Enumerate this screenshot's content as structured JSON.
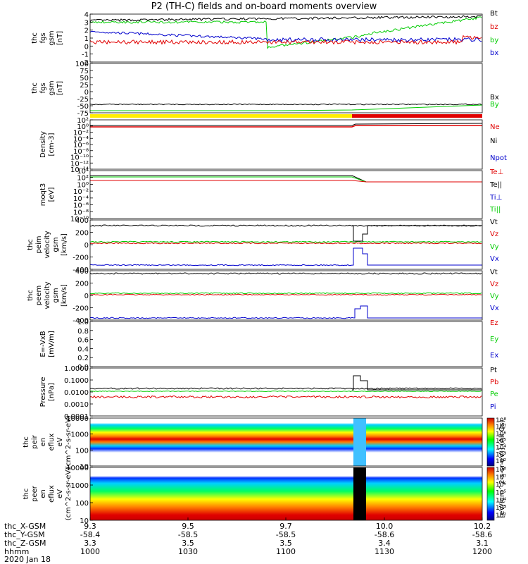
{
  "title": "P2 (TH-C) fields and on-board moments overview",
  "footer": {
    "date": "2020 Jan 18",
    "rows": [
      {
        "label": "thc_X-GSM",
        "values": [
          "9.3",
          "9.5",
          "9.7",
          "10.0",
          "10.2"
        ]
      },
      {
        "label": "thc_Y-GSM",
        "values": [
          "-58.4",
          "-58.5",
          "-58.5",
          "-58.6",
          "-58.6"
        ]
      },
      {
        "label": "thc_Z-GSM",
        "values": [
          "3.3",
          "3.5",
          "3.5",
          "3.4",
          "3.1"
        ]
      },
      {
        "label": "hhmm",
        "values": [
          "1000",
          "1030",
          "1100",
          "1130",
          "1200"
        ]
      }
    ]
  },
  "colors": {
    "black": "#000000",
    "red": "#e00000",
    "green": "#00cc00",
    "blue": "#0000cc",
    "yellow": "#ffee00"
  },
  "chart_data": [
    {
      "type": "line",
      "panel": "fgs1",
      "ylabel": "thc fgs gsm [nT]",
      "ylim": [
        -2,
        4
      ],
      "ticks": [
        "4",
        "3",
        "2",
        "1",
        "0",
        "-1",
        "-2"
      ],
      "series": [
        {
          "name": "Bt",
          "color": "#000000"
        },
        {
          "name": "bz",
          "color": "#e00000"
        },
        {
          "name": "by",
          "color": "#00cc00"
        },
        {
          "name": "bx",
          "color": "#0000cc"
        }
      ]
    },
    {
      "type": "line",
      "panel": "fgs2",
      "ylabel": "thc fgs gsm [nT]",
      "ylim": [
        -75,
        100
      ],
      "ticks": [
        "100",
        "75",
        "50",
        "25",
        "0",
        "-25",
        "-50",
        "-75"
      ],
      "series": [
        {
          "name": "Bx",
          "color": "#000000"
        },
        {
          "name": "By",
          "color": "#00cc00"
        }
      ]
    },
    {
      "type": "line",
      "panel": "density",
      "ylabel": "Density [cm-3]",
      "ticks": [
        "10²",
        "10⁰",
        "10⁻²",
        "10⁻⁴",
        "10⁻⁶",
        "10⁻⁸",
        "10⁻¹⁰",
        "10⁻¹²",
        "10⁻¹⁴"
      ],
      "series": [
        {
          "name": "Ne",
          "color": "#e00000"
        },
        {
          "name": "Ni",
          "color": "#000000"
        },
        {
          "name": "Npot",
          "color": "#0000cc"
        }
      ]
    },
    {
      "type": "line",
      "panel": "temp",
      "ylabel": "moqt3 [eV]",
      "ticks": [
        "10⁴",
        "10²",
        "10⁰",
        "10⁻²",
        "10⁻⁴",
        "10⁻⁶",
        "10⁻⁸",
        "10⁻¹⁰"
      ],
      "series": [
        {
          "name": "Te⊥",
          "color": "#e00000"
        },
        {
          "name": "Te||",
          "color": "#000000"
        },
        {
          "name": "Ti⊥",
          "color": "#0000cc"
        },
        {
          "name": "Ti||",
          "color": "#00cc00"
        }
      ]
    },
    {
      "type": "line",
      "panel": "ivel",
      "ylabel": "thc peim velocity gsm [km/s]",
      "ylim": [
        -400,
        400
      ],
      "ticks": [
        "400",
        "200",
        "0",
        "-200",
        "-400"
      ],
      "series": [
        {
          "name": "Vt",
          "color": "#000000"
        },
        {
          "name": "Vz",
          "color": "#e00000"
        },
        {
          "name": "Vy",
          "color": "#00cc00"
        },
        {
          "name": "Vx",
          "color": "#0000cc"
        }
      ]
    },
    {
      "type": "line",
      "panel": "evel",
      "ylabel": "thc peem velocity gsm [km/s]",
      "ylim": [
        -400,
        400
      ],
      "ticks": [
        "400",
        "200",
        "0",
        "-200",
        "-400"
      ],
      "series": [
        {
          "name": "Vt",
          "color": "#000000"
        },
        {
          "name": "Vz",
          "color": "#e00000"
        },
        {
          "name": "Vy",
          "color": "#00cc00"
        },
        {
          "name": "Vx",
          "color": "#0000cc"
        }
      ]
    },
    {
      "type": "line",
      "panel": "efield",
      "ylabel": "E=-VxB [mV/m]",
      "ylim": [
        0,
        1
      ],
      "ticks": [
        "1.0",
        "0.8",
        "0.6",
        "0.4",
        "0.2",
        "0.0"
      ],
      "series": [
        {
          "name": "Ez",
          "color": "#e00000"
        },
        {
          "name": "Ey",
          "color": "#00cc00"
        },
        {
          "name": "Ex",
          "color": "#0000cc"
        }
      ]
    },
    {
      "type": "line",
      "panel": "pressure",
      "ylabel": "Pressure [nPa]",
      "ticks": [
        "1.0000",
        "0.1000",
        "0.0100",
        "0.0010",
        "0.0001"
      ],
      "series": [
        {
          "name": "Pt",
          "color": "#000000"
        },
        {
          "name": "Pb",
          "color": "#e00000"
        },
        {
          "name": "Pe",
          "color": "#00cc00"
        },
        {
          "name": "Pi",
          "color": "#0000cc"
        }
      ]
    },
    {
      "type": "heatmap",
      "panel": "ion_spec",
      "ylabel": "thc peir en eflux eV (cm^2-s-sr-eV)",
      "ticks": [
        "10000",
        "1000",
        "100",
        "10"
      ]
    },
    {
      "type": "heatmap",
      "panel": "elec_spec",
      "ylabel": "thc peer en eflux eV (cm^2-s-sr-eV)",
      "ticks": [
        "10000",
        "1000",
        "100",
        "10"
      ]
    }
  ],
  "colorbar": {
    "label": "[eV/(cm^2-s-sr-eV)] (All Qs)",
    "ion_ticks": [
      "10⁸",
      "10⁷",
      "10⁶",
      "10⁵",
      "10⁴",
      "10³",
      "10²"
    ],
    "elec_ticks": [
      "10⁸",
      "10⁷",
      "10⁶",
      "10⁵",
      "10⁴",
      "10³",
      "10²"
    ]
  }
}
